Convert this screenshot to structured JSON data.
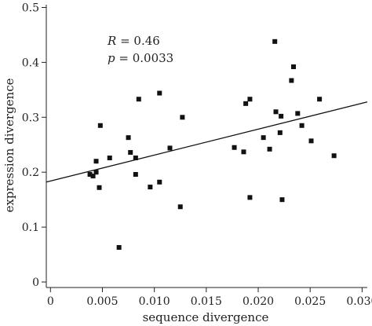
{
  "chart_data": {
    "type": "scatter",
    "xlabel": "sequence divergence",
    "ylabel": "expression divergence",
    "xlim": [
      -0.0004,
      0.0305
    ],
    "ylim": [
      -0.01,
      0.505
    ],
    "x_ticks": [
      0,
      0.005,
      0.01,
      0.015,
      0.02,
      0.025,
      0.03
    ],
    "x_tick_labels": [
      "0",
      "0.005",
      "0.010",
      "0.015",
      "0.020",
      "0.025",
      "0.030"
    ],
    "y_ticks": [
      0,
      0.1,
      0.2,
      0.3,
      0.4,
      0.5
    ],
    "y_tick_labels": [
      "0",
      "0.1",
      "0.2",
      "0.3",
      "0.4",
      "0.5"
    ],
    "grid": false,
    "annotation": {
      "r_symbol": "R",
      "r_value": " = 0.46",
      "p_symbol": "p",
      "p_value": " = 0.0033"
    },
    "trendline": {
      "x": [
        -0.0004,
        0.0305
      ],
      "y": [
        0.182,
        0.328
      ]
    },
    "points": [
      {
        "x": 0.0038,
        "y": 0.196
      },
      {
        "x": 0.0041,
        "y": 0.193
      },
      {
        "x": 0.0044,
        "y": 0.2
      },
      {
        "x": 0.0044,
        "y": 0.22
      },
      {
        "x": 0.0047,
        "y": 0.172
      },
      {
        "x": 0.0048,
        "y": 0.285
      },
      {
        "x": 0.0057,
        "y": 0.226
      },
      {
        "x": 0.0066,
        "y": 0.063
      },
      {
        "x": 0.0075,
        "y": 0.263
      },
      {
        "x": 0.0077,
        "y": 0.236
      },
      {
        "x": 0.0082,
        "y": 0.196
      },
      {
        "x": 0.0082,
        "y": 0.226
      },
      {
        "x": 0.0085,
        "y": 0.333
      },
      {
        "x": 0.0096,
        "y": 0.173
      },
      {
        "x": 0.0105,
        "y": 0.344
      },
      {
        "x": 0.0105,
        "y": 0.182
      },
      {
        "x": 0.0115,
        "y": 0.244
      },
      {
        "x": 0.0125,
        "y": 0.137
      },
      {
        "x": 0.0127,
        "y": 0.3
      },
      {
        "x": 0.0177,
        "y": 0.245
      },
      {
        "x": 0.0186,
        "y": 0.237
      },
      {
        "x": 0.0188,
        "y": 0.325
      },
      {
        "x": 0.0192,
        "y": 0.333
      },
      {
        "x": 0.0192,
        "y": 0.154
      },
      {
        "x": 0.0205,
        "y": 0.263
      },
      {
        "x": 0.0211,
        "y": 0.242
      },
      {
        "x": 0.0216,
        "y": 0.438
      },
      {
        "x": 0.0217,
        "y": 0.31
      },
      {
        "x": 0.0221,
        "y": 0.272
      },
      {
        "x": 0.0222,
        "y": 0.302
      },
      {
        "x": 0.0223,
        "y": 0.15
      },
      {
        "x": 0.0232,
        "y": 0.367
      },
      {
        "x": 0.0234,
        "y": 0.392
      },
      {
        "x": 0.0238,
        "y": 0.307
      },
      {
        "x": 0.0242,
        "y": 0.285
      },
      {
        "x": 0.0251,
        "y": 0.257
      },
      {
        "x": 0.0259,
        "y": 0.333
      },
      {
        "x": 0.0273,
        "y": 0.23
      }
    ]
  }
}
